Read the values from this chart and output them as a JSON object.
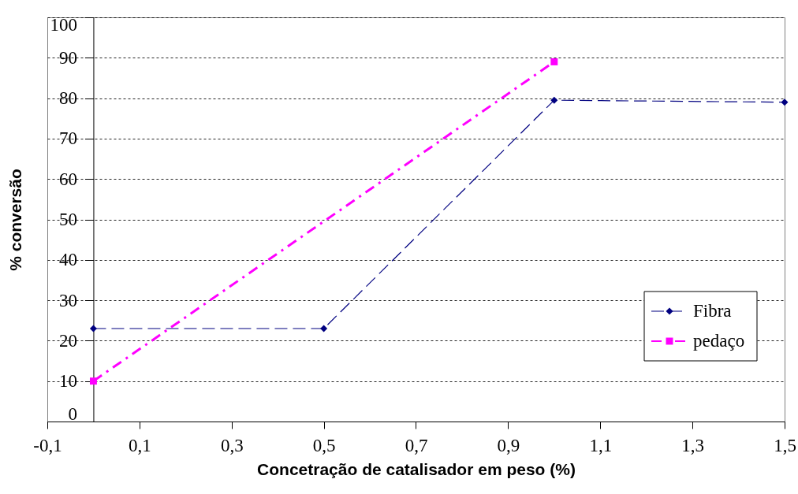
{
  "chart_data": {
    "type": "line",
    "xlabel": "Concetração de catalisador em peso (%)",
    "ylabel": "% conversão",
    "xlim": [
      -0.1,
      1.5
    ],
    "xticks": [
      {
        "value": -0.1,
        "label": "-0,1"
      },
      {
        "value": 0.1,
        "label": "0,1"
      },
      {
        "value": 0.3,
        "label": "0,3"
      },
      {
        "value": 0.5,
        "label": "0,5"
      },
      {
        "value": 0.7,
        "label": "0,7"
      },
      {
        "value": 0.9,
        "label": "0,9"
      },
      {
        "value": 1.1,
        "label": "1,1"
      },
      {
        "value": 1.3,
        "label": "1,3"
      },
      {
        "value": 1.5,
        "label": "1,5"
      }
    ],
    "ylim": [
      0,
      100
    ],
    "yticks": [
      0,
      10,
      20,
      30,
      40,
      50,
      60,
      70,
      80,
      90,
      100
    ],
    "grid": "y",
    "legend": "bottom right",
    "series": [
      {
        "name": "Fibra",
        "color": "#000080",
        "x": [
          0,
          0.5,
          1,
          1.5
        ],
        "values": [
          23,
          23,
          79.5,
          79
        ],
        "marker": "diamond",
        "line_style": "dashed"
      },
      {
        "name": "pedaço",
        "color": "#ff00ff",
        "x": [
          0,
          1
        ],
        "values": [
          10,
          89
        ],
        "marker": "square",
        "line_style": "dashdot"
      }
    ]
  }
}
